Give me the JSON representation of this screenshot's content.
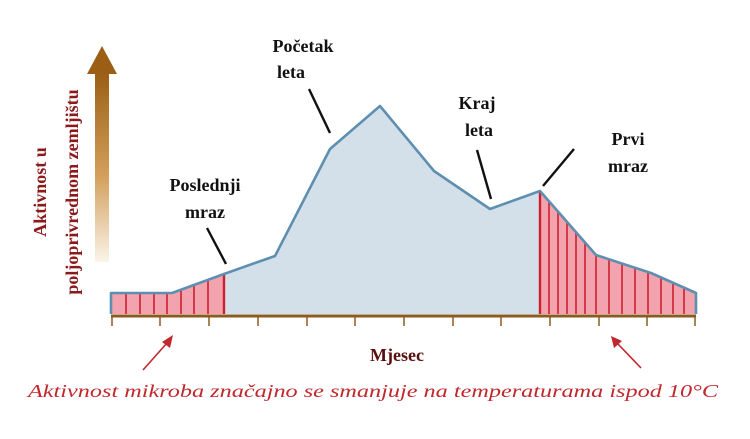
{
  "y_axis_label_line1": "Aktivnost u",
  "y_axis_label_line2": "poljoprivrednom zemljištu",
  "x_axis_label": "Mjesec",
  "annotations": [
    {
      "line1": "Poslednji",
      "line2": "mraz"
    },
    {
      "line1": "Početak",
      "line2": "leta"
    },
    {
      "line1": "Kraj",
      "line2": "leta"
    },
    {
      "line1": "Prvi",
      "line2": "mraz"
    }
  ],
  "footnote": "Aktivnost mikroba značajno se smanjuje na temperaturama ispod 10°C",
  "colors": {
    "area_fill": "#d3e0ea",
    "area_stroke": "#5f8fb0",
    "frost_fill": "#f2a3ad",
    "frost_hatch": "#cc1f2e",
    "axis": "#8a5a1e",
    "arrow": "#c0282d"
  }
}
